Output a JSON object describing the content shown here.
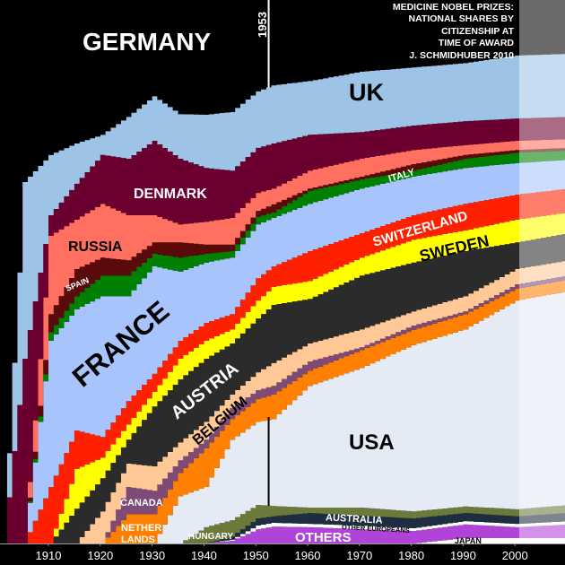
{
  "title_lines": [
    "MEDICINE NOBEL PRIZES:",
    "NATIONAL SHARES BY",
    "CITIZENSHIP AT",
    "TIME OF AWARD",
    "J. SCHMIDHUBER 2010"
  ],
  "marker_year_label": "1953",
  "chart_data": {
    "type": "area",
    "stacked": true,
    "stepped": true,
    "values_are": "cumulative upper boundary of each band, percent of prizes",
    "ylim": [
      0,
      100
    ],
    "xlim": [
      1901,
      2010
    ],
    "x_ticks": [
      "1910",
      "1920",
      "1930",
      "1940",
      "1950",
      "1960",
      "1970",
      "1980",
      "1990",
      "2000"
    ],
    "highlight_year": 1953,
    "faded_after_year": 2000,
    "grid": false,
    "years": [
      1901,
      1905,
      1910,
      1915,
      1920,
      1925,
      1930,
      1935,
      1940,
      1945,
      1950,
      1953,
      1960,
      1970,
      1980,
      1990,
      2000,
      2010
    ],
    "series": [
      {
        "key": "japan",
        "name": "JAPAN",
        "color": "#ffffff",
        "values": [
          0,
          0,
          0,
          0,
          0,
          0,
          0,
          0,
          0,
          0,
          0,
          0,
          0,
          0,
          0,
          1.0,
          1.0,
          1.0
        ]
      },
      {
        "key": "others",
        "name": "OTHERS",
        "color": "#b044d8",
        "values": [
          0,
          0,
          0,
          0,
          0,
          0,
          0,
          0,
          0,
          0.5,
          2.6,
          3.1,
          3.0,
          2.6,
          2.3,
          3.5,
          3.0,
          3.5
        ]
      },
      {
        "key": "other_europeans",
        "name": "OTHER EUROPEANS",
        "color": "#ffffff",
        "values": [
          0,
          0,
          0,
          0,
          0,
          0,
          0,
          0,
          0,
          0.7,
          3.3,
          3.8,
          3.6,
          3.3,
          2.8,
          4.1,
          3.6,
          4.1
        ]
      },
      {
        "key": "australia",
        "name": "AUSTRALIA",
        "color": "#1e2d40",
        "values": [
          0,
          0,
          0,
          0,
          0,
          0,
          0,
          0,
          0,
          1.3,
          4.6,
          5.0,
          5.6,
          5.1,
          4.6,
          5.6,
          5.0,
          5.6
        ]
      },
      {
        "key": "hungary",
        "name": "HUNGARY",
        "color": "#6b7a3a",
        "values": [
          0,
          0,
          0,
          0,
          0,
          0,
          0,
          0,
          3.0,
          4.3,
          7.1,
          6.9,
          6.6,
          6.6,
          5.9,
          6.8,
          6.3,
          7.1
        ]
      },
      {
        "key": "usa",
        "name": "USA",
        "color": "#e4ebf5",
        "values": [
          0,
          0,
          0,
          0,
          0,
          0,
          0,
          8.7,
          10.4,
          19.1,
          22.4,
          22.9,
          29.0,
          32.3,
          36.5,
          39.4,
          44.7,
          46.4
        ]
      },
      {
        "key": "netherlands",
        "name": "NETHER LANDS",
        "color": "#ff8000",
        "values": [
          0,
          0,
          0,
          0,
          0,
          5.4,
          5.4,
          13.0,
          17.5,
          22.9,
          26.6,
          27.4,
          31.8,
          35.6,
          39.3,
          42.2,
          46.9,
          48.5
        ]
      },
      {
        "key": "canada",
        "name": "CANADA",
        "color": "#7e4a78",
        "values": [
          0,
          0,
          0,
          0,
          0,
          10.4,
          9.7,
          15.3,
          19.1,
          24.9,
          28.2,
          29.0,
          33.5,
          36.1,
          40.1,
          42.7,
          47.7,
          49.3
        ]
      },
      {
        "key": "belgium",
        "name": "BELGIUM",
        "color": "#ffc896",
        "values": [
          0,
          0,
          0,
          0,
          5.9,
          14.7,
          14.2,
          18.6,
          22.4,
          27.4,
          31.5,
          33.2,
          36.8,
          39.4,
          42.7,
          45.5,
          50.5,
          52.1
        ]
      },
      {
        "key": "austria",
        "name": "AUSTRIA",
        "color": "#2b2b2b",
        "values": [
          0,
          0,
          0,
          6.4,
          12.0,
          19.1,
          25.2,
          30.2,
          34.0,
          36.8,
          41.4,
          43.9,
          45.0,
          49.3,
          51.7,
          53.8,
          55.4,
          57.1
        ]
      },
      {
        "key": "sweden",
        "name": "SWEDEN",
        "color": "#ffff00",
        "values": [
          0,
          0,
          0,
          13.7,
          15.8,
          21.9,
          27.9,
          34.0,
          37.3,
          39.4,
          44.7,
          47.2,
          48.3,
          52.6,
          55.9,
          57.6,
          59.6,
          60.9
        ]
      },
      {
        "key": "switzerland",
        "name": "SWITZERLAND",
        "color": "#ff2000",
        "values": [
          0,
          0,
          10.4,
          20.8,
          19.6,
          26.2,
          31.2,
          37.3,
          40.6,
          42.2,
          48.8,
          51.0,
          53.8,
          57.1,
          60.4,
          62.5,
          64.2,
          65.3
        ]
      },
      {
        "key": "france",
        "name": "FRANCE",
        "color": "#a8c4fc",
        "values": [
          0,
          0,
          37.3,
          43.1,
          45.5,
          45.5,
          51.0,
          50.0,
          51.7,
          52.6,
          58.7,
          59.9,
          62.5,
          65.3,
          67.5,
          69.1,
          70.0,
          70.6
        ]
      },
      {
        "key": "italy",
        "name": "ITALY",
        "color": "#008000",
        "values": [
          0,
          0,
          38.9,
          45.5,
          49.3,
          49.3,
          53.3,
          52.6,
          53.3,
          53.8,
          60.1,
          60.9,
          64.9,
          67.0,
          68.6,
          70.8,
          71.9,
          72.3
        ]
      },
      {
        "key": "spain",
        "name": "SPAIN",
        "color": "#5a0a0a",
        "values": [
          0,
          0,
          42.2,
          50.5,
          52.6,
          52.1,
          55.4,
          55.4,
          55.0,
          55.0,
          61.2,
          62.4,
          65.3,
          67.5,
          69.8,
          71.5,
          72.4,
          72.8
        ]
      },
      {
        "key": "russia",
        "name": "RUSSIA",
        "color": "#ff7060",
        "values": [
          0,
          0,
          56.6,
          59.6,
          62.5,
          60.4,
          60.4,
          58.7,
          59.2,
          59.9,
          64.5,
          65.3,
          68.6,
          70.8,
          72.4,
          73.3,
          74.1,
          74.4
        ]
      },
      {
        "key": "denmark",
        "name": "DENMARK",
        "color": "#6b0030",
        "values": [
          0,
          34.0,
          60.4,
          66.2,
          71.5,
          70.8,
          74.1,
          70.8,
          69.1,
          68.6,
          72.8,
          73.6,
          75.2,
          75.7,
          76.9,
          77.7,
          78.2,
          78.5
        ]
      },
      {
        "key": "uk",
        "name": "UK",
        "color": "#9dc3e6",
        "values": [
          0,
          66.5,
          71.5,
          73.6,
          75.2,
          78.5,
          82.3,
          79.0,
          78.9,
          79.4,
          83.2,
          84.3,
          85.1,
          86.8,
          87.6,
          88.4,
          89.8,
          90.1
        ]
      },
      {
        "key": "germany",
        "name": "GERMANY",
        "color": "#000000",
        "values": [
          100,
          100,
          100,
          100,
          100,
          100,
          100,
          100,
          100,
          100,
          100,
          100,
          100,
          100,
          100,
          100,
          100,
          100
        ]
      }
    ]
  },
  "labels": {
    "germany": "GERMANY",
    "uk": "UK",
    "denmark": "DENMARK",
    "italy": "ITALY",
    "russia": "RUSSIA",
    "spain": "SPAIN",
    "france": "FRANCE",
    "switzerland": "SWITZERLAND",
    "sweden": "SWEDEN",
    "austria": "AUSTRIA",
    "belgium": "BELGIUM",
    "usa": "USA",
    "canada": "CANADA",
    "netherlands_1": "NETHER",
    "netherlands_2": "LANDS",
    "hungary": "HUNGARY",
    "australia": "AUSTRALIA",
    "other_europeans": "OTHER EUROPEANS",
    "others": "OTHERS",
    "japan": "JAPAN"
  }
}
